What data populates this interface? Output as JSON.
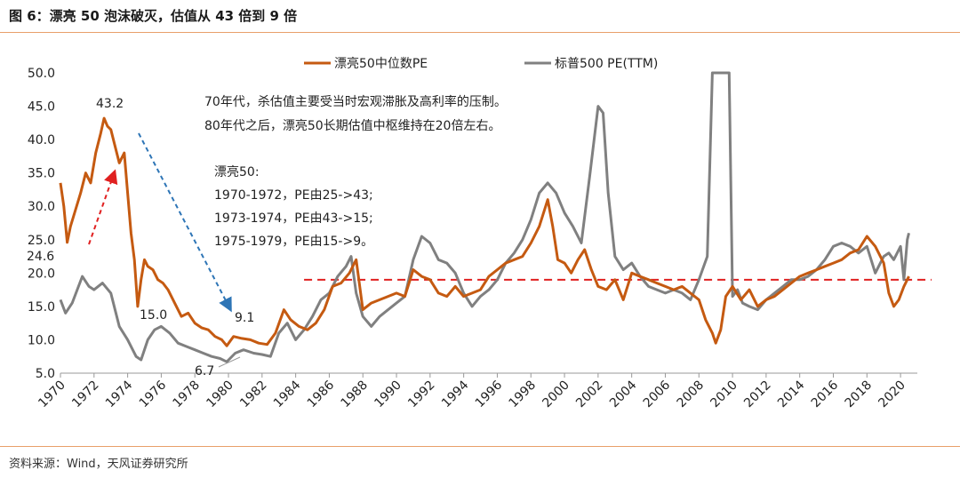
{
  "header": {
    "title": "图 6：漂亮 50 泡沫破灭，估值从 43 倍到 9 倍"
  },
  "footer": {
    "source": "资料来源：Wind，天风证券研究所"
  },
  "colors": {
    "nifty": "#c55a11",
    "sp500": "#808080",
    "ref_line": "#e02020",
    "up_arrow": "#e02020",
    "down_arrow": "#2e75b6",
    "rule": "#e8a06a"
  },
  "annotations": {
    "note1": "70年代，杀估值主要受当时宏观滞胀及高利率的压制。",
    "note2": "80年代之后，漂亮50长期估值中枢维持在20倍左右。",
    "box_title": "漂亮50:",
    "box_line1": "1970-1972，PE由25->43;",
    "box_line2": "1973-1974，PE由43->15;",
    "box_line3": "1975-1979，PE由15->9。",
    "peak": "43.2",
    "start": "24.6",
    "mid": "15.0",
    "end": "9.1",
    "sp_low": "6.7"
  },
  "chart_data": {
    "type": "line",
    "title": "",
    "xlabel": "",
    "ylabel": "",
    "ylim": [
      5,
      50
    ],
    "xlim": [
      1970,
      2021
    ],
    "yticks": [
      "5.0",
      "10.0",
      "15.0",
      "20.0",
      "25.0",
      "30.0",
      "35.0",
      "40.0",
      "45.0",
      "50.0"
    ],
    "xticks": [
      "1970",
      "1972",
      "1974",
      "1976",
      "1978",
      "1980",
      "1982",
      "1984",
      "1986",
      "1988",
      "1990",
      "1992",
      "1994",
      "1996",
      "1998",
      "2000",
      "2002",
      "2004",
      "2006",
      "2008",
      "2010",
      "2012",
      "2014",
      "2016",
      "2018",
      "2020"
    ],
    "legend_position": "top",
    "reference_line": 19,
    "series": [
      {
        "name": "漂亮50中位数PE",
        "x": [
          1970.0,
          1970.2,
          1970.4,
          1970.6,
          1970.9,
          1971.2,
          1971.5,
          1971.8,
          1972.1,
          1972.4,
          1972.6,
          1972.8,
          1973.0,
          1973.2,
          1973.5,
          1973.8,
          1974.0,
          1974.2,
          1974.4,
          1974.6,
          1974.8,
          1975.0,
          1975.2,
          1975.5,
          1975.8,
          1976.1,
          1976.4,
          1976.8,
          1977.2,
          1977.6,
          1978.0,
          1978.4,
          1978.8,
          1979.2,
          1979.6,
          1979.9,
          1980.3,
          1980.8,
          1981.3,
          1981.8,
          1982.3,
          1982.8,
          1983.3,
          1983.7,
          1984.2,
          1984.7,
          1985.2,
          1985.7,
          1986.2,
          1986.7,
          1987.2,
          1987.6,
          1988.0,
          1988.5,
          1989.0,
          1989.5,
          1990.0,
          1990.5,
          1991.0,
          1991.5,
          1992.0,
          1992.5,
          1993.0,
          1993.5,
          1994.0,
          1994.5,
          1995.0,
          1995.5,
          1996.0,
          1996.5,
          1997.0,
          1997.5,
          1998.0,
          1998.5,
          1999.0,
          1999.3,
          1999.6,
          2000.0,
          2000.4,
          2000.8,
          2001.2,
          2001.6,
          2002.0,
          2002.5,
          2003.0,
          2003.5,
          2004.0,
          2004.5,
          2005.0,
          2005.5,
          2006.0,
          2006.5,
          2007.0,
          2007.5,
          2008.0,
          2008.4,
          2008.8,
          2009.0,
          2009.3,
          2009.6,
          2010.0,
          2010.5,
          2011.0,
          2011.5,
          2012.0,
          2012.5,
          2013.0,
          2013.5,
          2014.0,
          2014.5,
          2015.0,
          2015.5,
          2016.0,
          2016.5,
          2017.0,
          2017.5,
          2018.0,
          2018.5,
          2019.0,
          2019.3,
          2019.6,
          2019.9,
          2020.2,
          2020.5
        ],
        "values": [
          33.5,
          30.0,
          24.6,
          27.0,
          29.5,
          32.0,
          35.0,
          33.5,
          38.0,
          41.0,
          43.2,
          42.0,
          41.5,
          39.5,
          36.5,
          38.0,
          32.0,
          26.0,
          22.0,
          15.0,
          19.0,
          22.0,
          21.0,
          20.5,
          19.0,
          18.5,
          17.5,
          15.5,
          13.5,
          14.0,
          12.5,
          11.8,
          11.5,
          10.5,
          10.0,
          9.1,
          10.5,
          10.2,
          10.0,
          9.5,
          9.3,
          11.0,
          14.5,
          13.0,
          12.0,
          11.5,
          12.5,
          14.5,
          18.0,
          18.5,
          20.0,
          22.0,
          14.5,
          15.5,
          16.0,
          16.5,
          17.0,
          16.5,
          20.5,
          19.5,
          19.0,
          17.0,
          16.5,
          18.0,
          16.5,
          17.0,
          17.5,
          19.5,
          20.5,
          21.5,
          22.0,
          22.5,
          24.5,
          27.0,
          31.0,
          27.0,
          22.0,
          21.5,
          20.0,
          22.0,
          23.5,
          20.5,
          18.0,
          17.5,
          19.0,
          16.0,
          20.0,
          19.5,
          19.0,
          18.5,
          18.0,
          17.5,
          18.0,
          17.0,
          16.0,
          13.0,
          11.0,
          9.5,
          11.5,
          16.5,
          18.0,
          16.0,
          17.5,
          15.0,
          16.0,
          16.5,
          17.5,
          18.5,
          19.5,
          20.0,
          20.5,
          21.0,
          21.5,
          22.0,
          23.0,
          23.5,
          25.5,
          24.0,
          21.5,
          17.0,
          15.0,
          16.0,
          18.0,
          19.5
        ]
      },
      {
        "name": "标普500 PE(TTM)",
        "x": [
          1970.0,
          1970.3,
          1970.7,
          1971.0,
          1971.3,
          1971.7,
          1972.0,
          1972.5,
          1973.0,
          1973.5,
          1974.0,
          1974.5,
          1974.8,
          1975.2,
          1975.6,
          1976.0,
          1976.5,
          1977.0,
          1977.5,
          1978.0,
          1978.5,
          1979.0,
          1979.5,
          1979.9,
          1980.4,
          1980.9,
          1981.5,
          1982.0,
          1982.5,
          1983.0,
          1983.5,
          1984.0,
          1984.5,
          1985.0,
          1985.5,
          1986.0,
          1986.5,
          1987.0,
          1987.3,
          1987.6,
          1988.0,
          1988.5,
          1989.0,
          1989.5,
          1990.0,
          1990.5,
          1991.0,
          1991.5,
          1992.0,
          1992.5,
          1993.0,
          1993.5,
          1994.0,
          1994.5,
          1995.0,
          1995.5,
          1996.0,
          1996.5,
          1997.0,
          1997.5,
          1998.0,
          1998.5,
          1999.0,
          1999.5,
          2000.0,
          2000.5,
          2001.0,
          2001.5,
          2002.0,
          2002.3,
          2002.6,
          2003.0,
          2003.5,
          2004.0,
          2004.5,
          2005.0,
          2005.5,
          2006.0,
          2006.5,
          2007.0,
          2007.5,
          2008.0,
          2008.5,
          2008.8,
          2008.9,
          2009.0,
          2009.3,
          2009.6,
          2009.8,
          2010.0,
          2010.3,
          2010.6,
          2011.0,
          2011.5,
          2012.0,
          2012.5,
          2013.0,
          2013.5,
          2014.0,
          2014.5,
          2015.0,
          2015.5,
          2016.0,
          2016.5,
          2017.0,
          2017.5,
          2018.0,
          2018.5,
          2019.0,
          2019.3,
          2019.6,
          2020.0,
          2020.2,
          2020.4,
          2020.5
        ],
        "values": [
          16.0,
          14.0,
          15.5,
          17.5,
          19.5,
          18.0,
          17.5,
          18.5,
          17.0,
          12.0,
          10.0,
          7.5,
          7.0,
          10.0,
          11.5,
          12.0,
          11.0,
          9.5,
          9.0,
          8.5,
          8.0,
          7.5,
          7.2,
          6.7,
          8.0,
          8.5,
          8.0,
          7.8,
          7.5,
          11.0,
          12.5,
          10.0,
          11.5,
          13.5,
          16.0,
          17.0,
          19.5,
          21.0,
          22.5,
          17.0,
          13.5,
          12.0,
          13.5,
          14.5,
          15.5,
          16.5,
          22.0,
          25.5,
          24.5,
          22.0,
          21.5,
          20.0,
          17.0,
          15.0,
          16.5,
          17.5,
          19.0,
          21.5,
          23.0,
          25.0,
          28.0,
          32.0,
          33.5,
          32.0,
          29.0,
          27.0,
          24.5,
          34.5,
          45.0,
          44.0,
          32.0,
          22.5,
          20.5,
          21.5,
          19.5,
          18.0,
          17.5,
          17.0,
          17.5,
          17.0,
          16.0,
          19.0,
          22.5,
          50.0,
          50.0,
          50.0,
          50.0,
          50.0,
          50.0,
          16.5,
          17.5,
          15.5,
          15.0,
          14.5,
          16.0,
          17.0,
          18.0,
          19.0,
          19.0,
          19.5,
          20.5,
          22.0,
          24.0,
          24.5,
          24.0,
          23.0,
          24.0,
          20.0,
          22.5,
          23.0,
          22.0,
          24.0,
          19.0,
          25.0,
          26.0
        ]
      }
    ]
  }
}
